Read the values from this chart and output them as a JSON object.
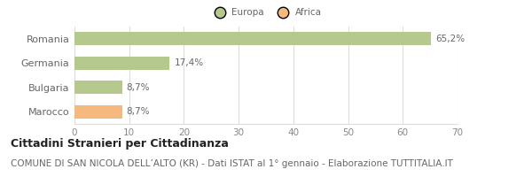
{
  "categories": [
    "Romania",
    "Germania",
    "Bulgaria",
    "Marocco"
  ],
  "values": [
    65.2,
    17.4,
    8.7,
    8.7
  ],
  "labels": [
    "65,2%",
    "17,4%",
    "8,7%",
    "8,7%"
  ],
  "bar_colors": [
    "#b5c98e",
    "#b5c98e",
    "#b5c98e",
    "#f5b97f"
  ],
  "legend_labels": [
    "Europa",
    "Africa"
  ],
  "legend_colors": [
    "#b5c98e",
    "#f5b97f"
  ],
  "xlim": [
    0,
    70
  ],
  "xticks": [
    0,
    10,
    20,
    30,
    40,
    50,
    60,
    70
  ],
  "title": "Cittadini Stranieri per Cittadinanza",
  "subtitle": "COMUNE DI SAN NICOLA DELL’ALTO (KR) - Dati ISTAT al 1° gennaio - Elaborazione TUTTITALIA.IT",
  "title_fontsize": 9,
  "subtitle_fontsize": 7.5,
  "bar_height": 0.55,
  "background_color": "#ffffff",
  "grid_color": "#dddddd",
  "label_fontsize": 7.5,
  "tick_fontsize": 7.5,
  "category_fontsize": 8
}
